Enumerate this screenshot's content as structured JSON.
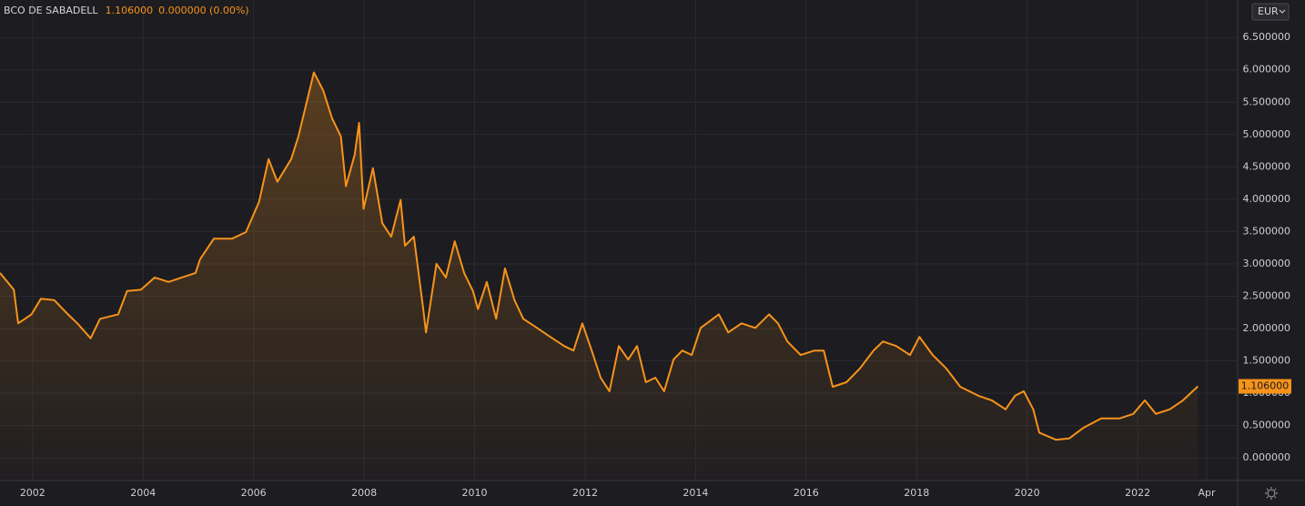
{
  "chart_data": {
    "type": "line",
    "title": "BCO DE SABADELL",
    "change": "0.000000 (0.00%)",
    "currency": "EUR",
    "last_price": {
      "value": 1.106,
      "label": "1.106000"
    },
    "color": "#f7931a",
    "grid": true,
    "xlim": [
      2001.41,
      2023.81
    ],
    "ylim": [
      -0.35,
      7.08
    ],
    "xticks": [
      2002,
      2004,
      2006,
      2008,
      2010,
      2012,
      2014,
      2016,
      2018,
      2020,
      2022,
      {
        "value": 2023.25,
        "label": "Apr"
      }
    ],
    "yticks": [
      {
        "value": 0,
        "label": "0.000000"
      },
      {
        "value": 0.5,
        "label": "0.500000"
      },
      {
        "value": 1,
        "label": "1.000000"
      },
      {
        "value": 1.5,
        "label": "1.500000"
      },
      {
        "value": 2,
        "label": "2.000000"
      },
      {
        "value": 2.5,
        "label": "2.500000"
      },
      {
        "value": 3,
        "label": "3.000000"
      },
      {
        "value": 3.5,
        "label": "3.500000"
      },
      {
        "value": 4,
        "label": "4.000000"
      },
      {
        "value": 4.5,
        "label": "4.500000"
      },
      {
        "value": 5,
        "label": "5.000000"
      },
      {
        "value": 5.5,
        "label": "5.500000"
      },
      {
        "value": 6,
        "label": "6.000000"
      },
      {
        "value": 6.5,
        "label": "6.500000"
      }
    ],
    "x": [
      2001.41,
      2001.66,
      2001.74,
      2001.98,
      2002.15,
      2002.39,
      2002.64,
      2002.81,
      2003.05,
      2003.22,
      2003.55,
      2003.71,
      2003.96,
      2004.21,
      2004.46,
      2004.7,
      2004.95,
      2005.03,
      2005.28,
      2005.61,
      2005.86,
      2006.1,
      2006.27,
      2006.43,
      2006.68,
      2006.81,
      2006.93,
      2007.09,
      2007.26,
      2007.42,
      2007.58,
      2007.67,
      2007.83,
      2007.91,
      2007.99,
      2008.16,
      2008.33,
      2008.49,
      2008.66,
      2008.74,
      2008.9,
      2009.07,
      2009.12,
      2009.31,
      2009.48,
      2009.64,
      2009.81,
      2009.97,
      2010.06,
      2010.22,
      2010.39,
      2010.55,
      2010.72,
      2010.88,
      2011.13,
      2011.37,
      2011.62,
      2011.79,
      2011.95,
      2012.12,
      2012.28,
      2012.44,
      2012.61,
      2012.78,
      2012.94,
      2013.1,
      2013.27,
      2013.43,
      2013.6,
      2013.76,
      2013.93,
      2014.09,
      2014.42,
      2014.59,
      2014.83,
      2015.08,
      2015.33,
      2015.49,
      2015.66,
      2015.9,
      2016.15,
      2016.32,
      2016.48,
      2016.73,
      2016.97,
      2017.22,
      2017.39,
      2017.63,
      2017.88,
      2018.05,
      2018.29,
      2018.54,
      2018.79,
      2019.12,
      2019.36,
      2019.61,
      2019.78,
      2019.94,
      2020.11,
      2020.22,
      2020.52,
      2020.76,
      2021.01,
      2021.34,
      2021.67,
      2021.92,
      2022.13,
      2022.33,
      2022.58,
      2022.82,
      2023.09
    ],
    "series": [
      {
        "color": "#f7931a",
        "values": [
          2.86,
          2.6,
          2.08,
          2.22,
          2.46,
          2.44,
          2.22,
          2.08,
          1.85,
          2.15,
          2.22,
          2.58,
          2.6,
          2.79,
          2.72,
          2.79,
          2.86,
          3.07,
          3.39,
          3.39,
          3.49,
          3.96,
          4.62,
          4.27,
          4.62,
          4.97,
          5.39,
          5.96,
          5.68,
          5.25,
          4.97,
          4.2,
          4.69,
          5.18,
          3.85,
          4.48,
          3.63,
          3.42,
          3.99,
          3.28,
          3.42,
          2.3,
          1.94,
          3.0,
          2.79,
          3.35,
          2.86,
          2.58,
          2.3,
          2.72,
          2.15,
          2.93,
          2.44,
          2.15,
          2.01,
          1.87,
          1.73,
          1.66,
          2.08,
          1.66,
          1.24,
          1.03,
          1.73,
          1.52,
          1.73,
          1.17,
          1.24,
          1.03,
          1.52,
          1.66,
          1.59,
          2.01,
          2.22,
          1.94,
          2.08,
          2.01,
          2.22,
          2.08,
          1.8,
          1.59,
          1.66,
          1.66,
          1.1,
          1.17,
          1.38,
          1.66,
          1.8,
          1.73,
          1.59,
          1.87,
          1.59,
          1.38,
          1.1,
          0.96,
          0.89,
          0.75,
          0.96,
          1.03,
          0.75,
          0.39,
          0.28,
          0.3,
          0.46,
          0.61,
          0.61,
          0.68,
          0.89,
          0.68,
          0.75,
          0.89,
          1.106
        ]
      }
    ]
  }
}
